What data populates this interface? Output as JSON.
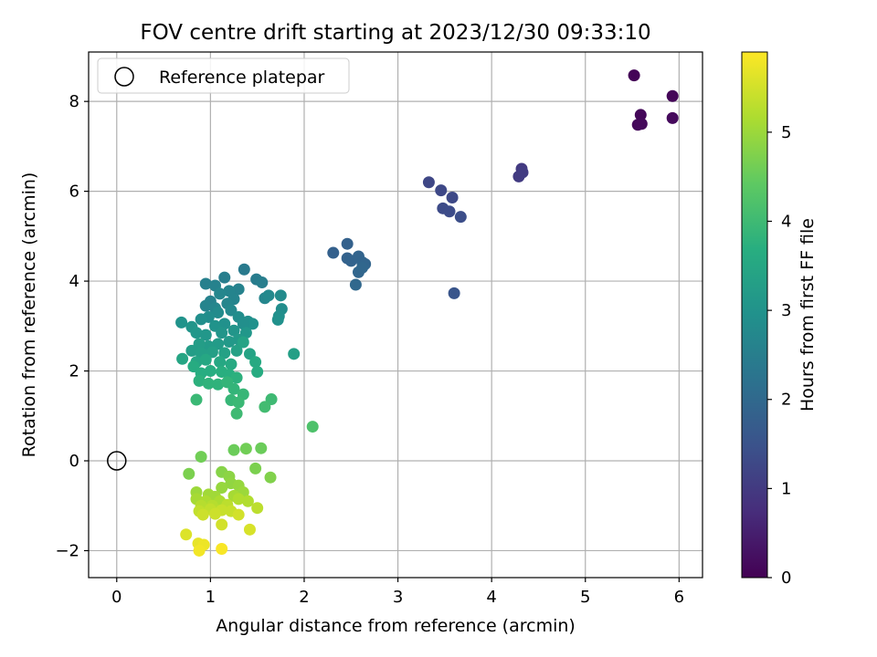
{
  "chart_data": {
    "type": "scatter",
    "title": "FOV centre drift starting at 2023/12/30 09:33:10",
    "xlabel": "Angular distance from reference (arcmin)",
    "ylabel": "Rotation from reference (arcmin)",
    "xlim": [
      -0.3,
      6.25
    ],
    "ylim": [
      -2.6,
      9.1
    ],
    "xticks": [
      0,
      1,
      2,
      3,
      4,
      5,
      6
    ],
    "yticks": [
      -2,
      0,
      2,
      4,
      6,
      8
    ],
    "grid": true,
    "legend": {
      "placement": "upper-left",
      "entries": [
        "Reference platepar"
      ]
    },
    "reference_point": {
      "x": 0,
      "y": 0
    },
    "colormap": "viridis",
    "colorbar": {
      "label": "Hours from first FF file",
      "range": [
        0,
        5.9
      ],
      "ticks": [
        0,
        1,
        2,
        3,
        4,
        5
      ]
    },
    "points": [
      {
        "x": 5.52,
        "y": 8.58,
        "c": 0.05
      },
      {
        "x": 5.93,
        "y": 8.12,
        "c": 0.08
      },
      {
        "x": 5.59,
        "y": 7.7,
        "c": 0.1
      },
      {
        "x": 5.56,
        "y": 7.48,
        "c": 0.12
      },
      {
        "x": 5.6,
        "y": 7.5,
        "c": 0.14
      },
      {
        "x": 5.93,
        "y": 7.63,
        "c": 0.15
      },
      {
        "x": 4.32,
        "y": 6.5,
        "c": 1.0
      },
      {
        "x": 4.29,
        "y": 6.33,
        "c": 1.02
      },
      {
        "x": 4.33,
        "y": 6.42,
        "c": 1.04
      },
      {
        "x": 3.33,
        "y": 6.2,
        "c": 1.25
      },
      {
        "x": 3.46,
        "y": 6.02,
        "c": 1.28
      },
      {
        "x": 3.58,
        "y": 5.86,
        "c": 1.3
      },
      {
        "x": 3.48,
        "y": 5.62,
        "c": 1.33
      },
      {
        "x": 3.55,
        "y": 5.55,
        "c": 1.36
      },
      {
        "x": 3.67,
        "y": 5.43,
        "c": 1.4
      },
      {
        "x": 3.6,
        "y": 3.73,
        "c": 1.55
      },
      {
        "x": 2.31,
        "y": 4.63,
        "c": 1.8
      },
      {
        "x": 2.46,
        "y": 4.83,
        "c": 1.82
      },
      {
        "x": 2.46,
        "y": 4.51,
        "c": 1.84
      },
      {
        "x": 2.5,
        "y": 4.45,
        "c": 1.86
      },
      {
        "x": 2.58,
        "y": 4.55,
        "c": 1.88
      },
      {
        "x": 2.62,
        "y": 4.42,
        "c": 1.9
      },
      {
        "x": 2.65,
        "y": 4.38,
        "c": 1.92
      },
      {
        "x": 2.58,
        "y": 4.2,
        "c": 1.94
      },
      {
        "x": 2.62,
        "y": 4.3,
        "c": 1.96
      },
      {
        "x": 2.55,
        "y": 3.92,
        "c": 1.98
      },
      {
        "x": 1.36,
        "y": 4.26,
        "c": 2.4
      },
      {
        "x": 1.49,
        "y": 4.04,
        "c": 2.45
      },
      {
        "x": 1.55,
        "y": 3.97,
        "c": 2.5
      },
      {
        "x": 1.15,
        "y": 4.08,
        "c": 2.5
      },
      {
        "x": 0.95,
        "y": 3.94,
        "c": 2.55
      },
      {
        "x": 1.05,
        "y": 3.9,
        "c": 2.6
      },
      {
        "x": 1.3,
        "y": 3.82,
        "c": 2.6
      },
      {
        "x": 1.2,
        "y": 3.78,
        "c": 2.65
      },
      {
        "x": 1.1,
        "y": 3.72,
        "c": 2.7
      },
      {
        "x": 1.58,
        "y": 3.62,
        "c": 2.7
      },
      {
        "x": 1.62,
        "y": 3.68,
        "c": 2.75
      },
      {
        "x": 1.75,
        "y": 3.68,
        "c": 2.8
      },
      {
        "x": 1.76,
        "y": 3.38,
        "c": 2.85
      },
      {
        "x": 1.73,
        "y": 3.22,
        "c": 2.9
      },
      {
        "x": 1.72,
        "y": 3.14,
        "c": 2.95
      },
      {
        "x": 1.0,
        "y": 3.55,
        "c": 2.6
      },
      {
        "x": 0.95,
        "y": 3.45,
        "c": 2.65
      },
      {
        "x": 1.05,
        "y": 3.4,
        "c": 2.7
      },
      {
        "x": 1.25,
        "y": 3.6,
        "c": 2.65
      },
      {
        "x": 1.18,
        "y": 3.5,
        "c": 2.7
      },
      {
        "x": 1.22,
        "y": 3.35,
        "c": 2.75
      },
      {
        "x": 1.08,
        "y": 3.3,
        "c": 2.8
      },
      {
        "x": 0.98,
        "y": 3.2,
        "c": 2.85
      },
      {
        "x": 0.9,
        "y": 3.15,
        "c": 2.9
      },
      {
        "x": 1.3,
        "y": 3.2,
        "c": 2.85
      },
      {
        "x": 1.4,
        "y": 3.1,
        "c": 2.9
      },
      {
        "x": 1.45,
        "y": 3.05,
        "c": 2.95
      },
      {
        "x": 1.35,
        "y": 3.05,
        "c": 2.9
      },
      {
        "x": 1.15,
        "y": 3.05,
        "c": 2.95
      },
      {
        "x": 1.05,
        "y": 3.0,
        "c": 3.0
      },
      {
        "x": 0.69,
        "y": 3.08,
        "c": 3.0
      },
      {
        "x": 0.8,
        "y": 2.98,
        "c": 3.05
      },
      {
        "x": 0.85,
        "y": 2.85,
        "c": 3.1
      },
      {
        "x": 0.95,
        "y": 2.8,
        "c": 3.1
      },
      {
        "x": 1.12,
        "y": 2.85,
        "c": 3.05
      },
      {
        "x": 1.25,
        "y": 2.9,
        "c": 3.05
      },
      {
        "x": 1.38,
        "y": 2.85,
        "c": 3.1
      },
      {
        "x": 1.3,
        "y": 2.7,
        "c": 3.15
      },
      {
        "x": 1.2,
        "y": 2.65,
        "c": 3.15
      },
      {
        "x": 1.08,
        "y": 2.6,
        "c": 3.2
      },
      {
        "x": 0.98,
        "y": 2.55,
        "c": 3.2
      },
      {
        "x": 0.88,
        "y": 2.6,
        "c": 3.25
      },
      {
        "x": 0.8,
        "y": 2.45,
        "c": 3.25
      },
      {
        "x": 0.9,
        "y": 2.4,
        "c": 3.3
      },
      {
        "x": 1.02,
        "y": 2.42,
        "c": 3.3
      },
      {
        "x": 1.15,
        "y": 2.4,
        "c": 3.35
      },
      {
        "x": 1.28,
        "y": 2.45,
        "c": 3.35
      },
      {
        "x": 1.35,
        "y": 2.64,
        "c": 3.4
      },
      {
        "x": 1.42,
        "y": 2.38,
        "c": 3.4
      },
      {
        "x": 1.89,
        "y": 2.38,
        "c": 3.3
      },
      {
        "x": 0.7,
        "y": 2.27,
        "c": 3.45
      },
      {
        "x": 0.85,
        "y": 2.2,
        "c": 3.45
      },
      {
        "x": 0.95,
        "y": 2.25,
        "c": 3.5
      },
      {
        "x": 1.1,
        "y": 2.2,
        "c": 3.5
      },
      {
        "x": 1.22,
        "y": 2.15,
        "c": 3.55
      },
      {
        "x": 1.48,
        "y": 2.2,
        "c": 3.55
      },
      {
        "x": 1.5,
        "y": 1.98,
        "c": 3.6
      },
      {
        "x": 0.82,
        "y": 2.1,
        "c": 3.6
      },
      {
        "x": 0.9,
        "y": 1.95,
        "c": 3.65
      },
      {
        "x": 1.0,
        "y": 2.0,
        "c": 3.65
      },
      {
        "x": 1.12,
        "y": 1.98,
        "c": 3.7
      },
      {
        "x": 1.2,
        "y": 1.92,
        "c": 3.7
      },
      {
        "x": 1.28,
        "y": 1.85,
        "c": 3.75
      },
      {
        "x": 0.88,
        "y": 1.78,
        "c": 3.75
      },
      {
        "x": 0.98,
        "y": 1.72,
        "c": 3.8
      },
      {
        "x": 1.08,
        "y": 1.7,
        "c": 3.8
      },
      {
        "x": 1.18,
        "y": 1.75,
        "c": 3.85
      },
      {
        "x": 1.25,
        "y": 1.6,
        "c": 3.85
      },
      {
        "x": 1.35,
        "y": 1.48,
        "c": 3.9
      },
      {
        "x": 1.22,
        "y": 1.35,
        "c": 3.9
      },
      {
        "x": 1.3,
        "y": 1.3,
        "c": 3.95
      },
      {
        "x": 0.85,
        "y": 1.36,
        "c": 3.95
      },
      {
        "x": 1.28,
        "y": 1.05,
        "c": 4.0
      },
      {
        "x": 1.65,
        "y": 1.37,
        "c": 4.0
      },
      {
        "x": 1.58,
        "y": 1.2,
        "c": 4.05
      },
      {
        "x": 2.09,
        "y": 0.76,
        "c": 4.2
      },
      {
        "x": 0.9,
        "y": 0.09,
        "c": 4.6
      },
      {
        "x": 1.25,
        "y": 0.24,
        "c": 4.55
      },
      {
        "x": 1.38,
        "y": 0.27,
        "c": 4.6
      },
      {
        "x": 1.54,
        "y": 0.28,
        "c": 4.55
      },
      {
        "x": 0.77,
        "y": -0.29,
        "c": 4.7
      },
      {
        "x": 1.48,
        "y": -0.17,
        "c": 4.7
      },
      {
        "x": 1.64,
        "y": -0.37,
        "c": 4.75
      },
      {
        "x": 1.12,
        "y": -0.25,
        "c": 4.8
      },
      {
        "x": 1.2,
        "y": -0.35,
        "c": 4.85
      },
      {
        "x": 1.22,
        "y": -0.5,
        "c": 4.9
      },
      {
        "x": 1.12,
        "y": -0.6,
        "c": 4.95
      },
      {
        "x": 1.3,
        "y": -0.55,
        "c": 4.95
      },
      {
        "x": 1.35,
        "y": -0.7,
        "c": 5.0
      },
      {
        "x": 0.85,
        "y": -0.7,
        "c": 5.0
      },
      {
        "x": 0.98,
        "y": -0.75,
        "c": 5.05
      },
      {
        "x": 1.05,
        "y": -0.8,
        "c": 5.05
      },
      {
        "x": 1.25,
        "y": -0.78,
        "c": 5.1
      },
      {
        "x": 0.85,
        "y": -0.85,
        "c": 5.1
      },
      {
        "x": 0.95,
        "y": -0.9,
        "c": 5.15
      },
      {
        "x": 1.1,
        "y": -0.9,
        "c": 5.15
      },
      {
        "x": 1.3,
        "y": -0.85,
        "c": 5.2
      },
      {
        "x": 1.4,
        "y": -0.9,
        "c": 5.2
      },
      {
        "x": 0.9,
        "y": -1.0,
        "c": 5.25
      },
      {
        "x": 1.02,
        "y": -1.0,
        "c": 5.25
      },
      {
        "x": 1.18,
        "y": -0.98,
        "c": 5.3
      },
      {
        "x": 1.5,
        "y": -1.05,
        "c": 5.3
      },
      {
        "x": 0.88,
        "y": -1.12,
        "c": 5.35
      },
      {
        "x": 1.0,
        "y": -1.08,
        "c": 5.35
      },
      {
        "x": 1.12,
        "y": -1.1,
        "c": 5.4
      },
      {
        "x": 1.22,
        "y": -1.12,
        "c": 5.4
      },
      {
        "x": 0.92,
        "y": -1.2,
        "c": 5.45
      },
      {
        "x": 1.05,
        "y": -1.18,
        "c": 5.45
      },
      {
        "x": 1.3,
        "y": -1.2,
        "c": 5.5
      },
      {
        "x": 1.12,
        "y": -1.42,
        "c": 5.5
      },
      {
        "x": 1.42,
        "y": -1.53,
        "c": 5.55
      },
      {
        "x": 0.74,
        "y": -1.64,
        "c": 5.6
      },
      {
        "x": 0.87,
        "y": -1.84,
        "c": 5.7
      },
      {
        "x": 0.93,
        "y": -1.87,
        "c": 5.75
      },
      {
        "x": 0.88,
        "y": -2.0,
        "c": 5.8
      },
      {
        "x": 1.12,
        "y": -1.96,
        "c": 5.85
      }
    ]
  }
}
